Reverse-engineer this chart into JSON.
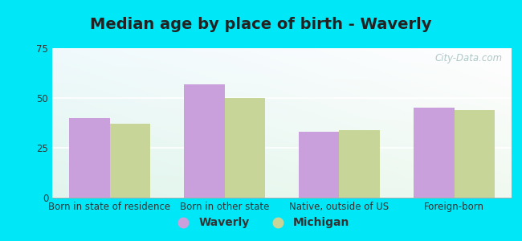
{
  "title": "Median age by place of birth - Waverly",
  "categories": [
    "Born in state of residence",
    "Born in other state",
    "Native, outside of US",
    "Foreign-born"
  ],
  "waverly_values": [
    40,
    57,
    33,
    45
  ],
  "michigan_values": [
    37,
    50,
    34,
    44
  ],
  "waverly_color": "#c9a0dc",
  "michigan_color": "#c8d598",
  "ylim": [
    0,
    75
  ],
  "yticks": [
    0,
    25,
    50,
    75
  ],
  "bar_width": 0.35,
  "legend_labels": [
    "Waverly",
    "Michigan"
  ],
  "outer_background": "#00e8f8",
  "title_fontsize": 14,
  "tick_fontsize": 8.5,
  "legend_fontsize": 10,
  "axis_bg_color": "#e2f5e2",
  "watermark_text": "City-Data.com",
  "watermark_color": "#b0c8c8",
  "spine_color": "#aaaaaa"
}
